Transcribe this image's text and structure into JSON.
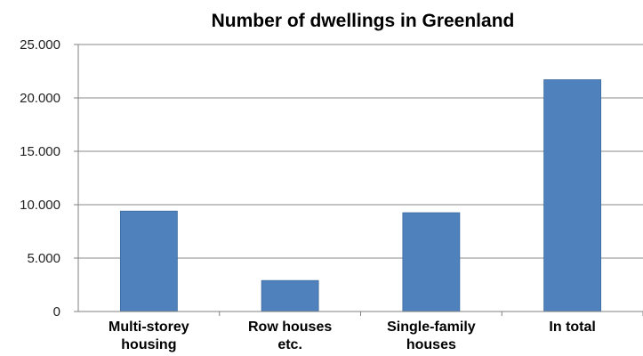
{
  "chart_data": {
    "type": "bar",
    "title": "Number of dwellings in Greenland",
    "xlabel": "",
    "ylabel": "",
    "categories": [
      [
        "Multi-storey",
        "housing"
      ],
      [
        "Row houses",
        "etc."
      ],
      [
        "Single-family",
        "houses"
      ],
      [
        "In total"
      ]
    ],
    "values": [
      9400,
      2900,
      9250,
      21700
    ],
    "ylim": [
      0,
      25000
    ],
    "yticks": [
      0,
      5000,
      10000,
      15000,
      20000,
      25000
    ],
    "ytick_labels": [
      "0",
      "5.000",
      "10.000",
      "15.000",
      "20.000",
      "25.000"
    ],
    "grid": true,
    "legend": "none",
    "colors": {
      "bar": "#4f81bd",
      "bar_edge": "#3b6a9e",
      "grid": "#8a8a8a",
      "axis": "#808080"
    }
  }
}
